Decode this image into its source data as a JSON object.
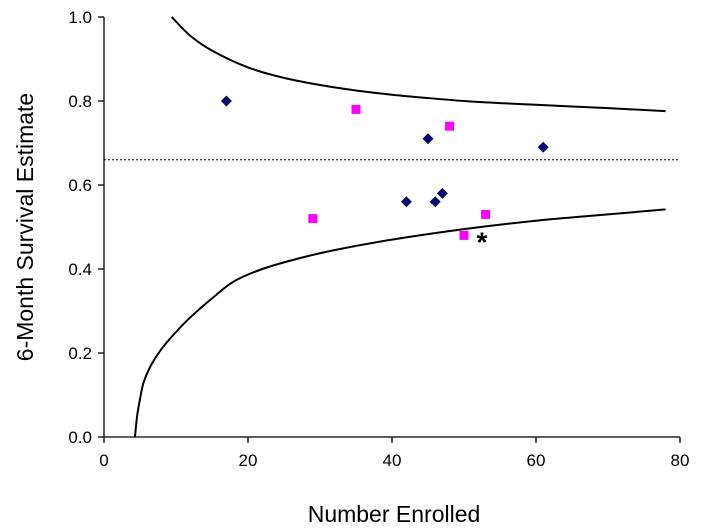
{
  "chart_data": {
    "type": "scatter",
    "xlabel": "Number Enrolled",
    "ylabel": "6-Month Survival Estimate",
    "xlim": [
      0,
      80
    ],
    "ylim": [
      0,
      1.0
    ],
    "x_ticks": [
      "0",
      "20",
      "40",
      "60",
      "80"
    ],
    "y_ticks": [
      "0.0",
      "0.2",
      "0.4",
      "0.6",
      "0.8",
      "1.0"
    ],
    "grid": false,
    "legend": "none",
    "series": [
      {
        "marker": "diamond",
        "color": "#0a0a6e",
        "points": [
          {
            "x": 17,
            "y": 0.8
          },
          {
            "x": 42,
            "y": 0.56
          },
          {
            "x": 45,
            "y": 0.71
          },
          {
            "x": 46,
            "y": 0.56
          },
          {
            "x": 47,
            "y": 0.58
          },
          {
            "x": 61,
            "y": 0.69
          }
        ]
      },
      {
        "marker": "square",
        "color": "#ff00ff",
        "points": [
          {
            "x": 29,
            "y": 0.52
          },
          {
            "x": 35,
            "y": 0.78
          },
          {
            "x": 48,
            "y": 0.74
          },
          {
            "x": 50,
            "y": 0.48
          },
          {
            "x": 53,
            "y": 0.53
          }
        ]
      }
    ],
    "reference_line": {
      "y": 0.66,
      "style": "dotted",
      "color": "#000000"
    },
    "upper_bound": {
      "color": "#000000",
      "x": [
        9.4,
        12,
        15,
        20,
        25,
        30,
        35,
        40,
        45,
        50,
        55,
        60,
        65,
        70,
        78
      ],
      "y": [
        1.0,
        0.955,
        0.92,
        0.88,
        0.855,
        0.838,
        0.825,
        0.815,
        0.807,
        0.8,
        0.795,
        0.791,
        0.787,
        0.783,
        0.776
      ]
    },
    "lower_bound": {
      "color": "#000000",
      "x": [
        4.3,
        4.6,
        5.0,
        5.5,
        6.5,
        8,
        10,
        12,
        15,
        18,
        22,
        27,
        32,
        40,
        50,
        60,
        70,
        78
      ],
      "y": [
        0.0,
        0.05,
        0.09,
        0.13,
        0.17,
        0.21,
        0.25,
        0.285,
        0.33,
        0.37,
        0.4,
        0.425,
        0.445,
        0.47,
        0.495,
        0.515,
        0.53,
        0.542
      ]
    },
    "annotations": [
      {
        "text": "*",
        "x": 52.5,
        "y": 0.48
      }
    ]
  }
}
